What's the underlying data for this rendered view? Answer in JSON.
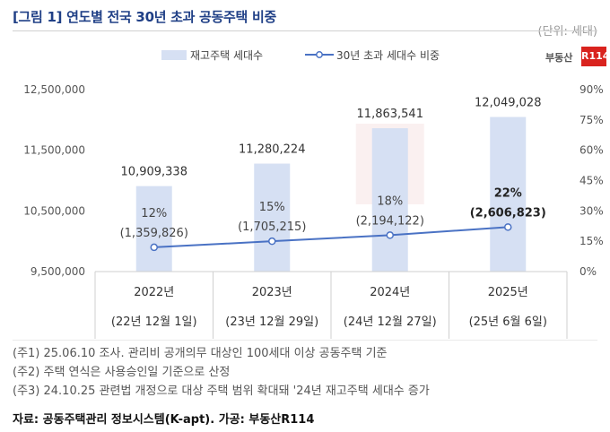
{
  "header": {
    "title": "[그림 1] 연도별 전국 30년 초과 공동주택 비중",
    "unit": "(단위: 세대)"
  },
  "logo": {
    "text": "부동산",
    "mark": "R114"
  },
  "chart_data": {
    "type": "bar+line",
    "categories": [
      "2022년",
      "2023년",
      "2024년",
      "2025년"
    ],
    "category_sublabels": [
      "(22년 12월 1일)",
      "(23년 12월 29일)",
      "(24년 12월 27일)",
      "(25년 6월 6일)"
    ],
    "series": [
      {
        "name": "재고주택 세대수",
        "type": "bar",
        "axis": "left",
        "values": [
          10909338,
          11280224,
          11863541,
          12049028
        ],
        "labels": [
          "10,909,338",
          "11,280,224",
          "11,863,541",
          "12,049,028"
        ]
      },
      {
        "name": "30년 초과 세대수 비중",
        "type": "line",
        "axis": "right",
        "values": [
          12,
          15,
          18,
          22
        ],
        "labels": [
          "12%",
          "15%",
          "18%",
          "22%"
        ],
        "counts": [
          1359826,
          1705215,
          2194122,
          2606823
        ],
        "count_labels": [
          "(1,359,826)",
          "(1,705,215)",
          "(2,194,122)",
          "(2,606,823)"
        ]
      }
    ],
    "left_axis": {
      "ylim": [
        9500000,
        12500000
      ],
      "ticks": [
        9500000,
        10500000,
        11500000,
        12500000
      ],
      "tick_labels": [
        "9,500,000",
        "10,500,000",
        "11,500,000",
        "12,500,000"
      ]
    },
    "right_axis": {
      "ylim": [
        0,
        90
      ],
      "ticks": [
        0,
        15,
        30,
        45,
        60,
        75,
        90
      ],
      "tick_labels": [
        "0%",
        "15%",
        "30%",
        "45%",
        "60%",
        "75%",
        "90%"
      ]
    },
    "legend_position": "top",
    "grid": false,
    "colors": {
      "bar": "#d6e0f3",
      "line": "#4a72c4",
      "highlight_bar": "#f6e3e3"
    }
  },
  "notes": [
    "(주1) 25.06.10 조사. 관리비 공개의무 대상인 100세대 이상 공동주택 기준",
    "(주2) 주택 연식은 사용승인일 기준으로 산정",
    "(주3) 24.10.25 관련법 개정으로 대상 주택 범위 확대돼 '24년 재고주택 세대수 증가"
  ],
  "source": "자료: 공동주택관리 정보시스템(K-apt). 가공: 부동산R114"
}
